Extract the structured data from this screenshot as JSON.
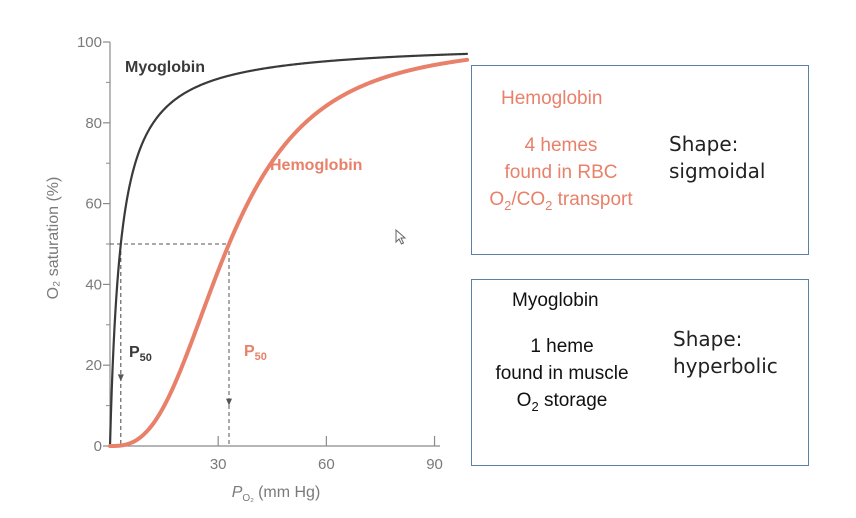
{
  "chart_data": {
    "type": "line",
    "xlabel_main": "P",
    "xlabel_sub": "O₂",
    "xlabel_unit": "(mm Hg)",
    "ylabel": "O₂ saturation (%)",
    "xlim": [
      0,
      100
    ],
    "ylim": [
      0,
      100
    ],
    "x_ticks": [
      30,
      60,
      90
    ],
    "y_ticks": [
      0,
      20,
      40,
      60,
      80,
      100
    ],
    "series": [
      {
        "name": "Myoglobin",
        "color": "#3a3a3a",
        "p50": 3,
        "hill": 1,
        "x": [
          0,
          1,
          2,
          3,
          5,
          10,
          15,
          20,
          30,
          40,
          60,
          80,
          100
        ],
        "y": [
          0,
          25,
          40,
          50,
          62,
          77,
          83,
          87,
          91,
          93,
          95,
          96,
          97
        ]
      },
      {
        "name": "Hemoglobin",
        "color": "#e8806a",
        "p50": 33,
        "hill": 2.8,
        "x": [
          0,
          10,
          20,
          30,
          33,
          40,
          50,
          60,
          70,
          80,
          90,
          100
        ],
        "y": [
          0,
          4,
          20,
          42,
          50,
          63,
          76,
          84,
          89,
          91,
          93,
          95
        ]
      }
    ],
    "annotations": [
      {
        "text": "P",
        "sub": "50",
        "series": "Myoglobin",
        "x": 3,
        "y": 50
      },
      {
        "text": "P",
        "sub": "50",
        "series": "Hemoglobin",
        "x": 33,
        "y": 50
      }
    ]
  },
  "boxes": {
    "hemoglobin": {
      "title": "Hemoglobin",
      "line1": "4 hemes",
      "line2": "found in RBC",
      "line3_a": "O",
      "line3_sub1": "2",
      "line3_b": "/CO",
      "line3_sub2": "2",
      "line3_c": " transport",
      "shape_label": "Shape:",
      "shape_value": "sigmoidal"
    },
    "myoglobin": {
      "title": "Myoglobin",
      "line1": "1 heme",
      "line2": "found in muscle",
      "line3_a": "O",
      "line3_sub1": "2",
      "line3_b": " storage",
      "shape_label": "Shape:",
      "shape_value": "hyperbolic"
    }
  },
  "colors": {
    "hemoglobin": "#e8806a",
    "myoglobin": "#3a3a3a",
    "axis": "#8a8a8a",
    "box_border": "#5a82a6"
  },
  "icons": {
    "cursor": "mouse-pointer-icon"
  }
}
